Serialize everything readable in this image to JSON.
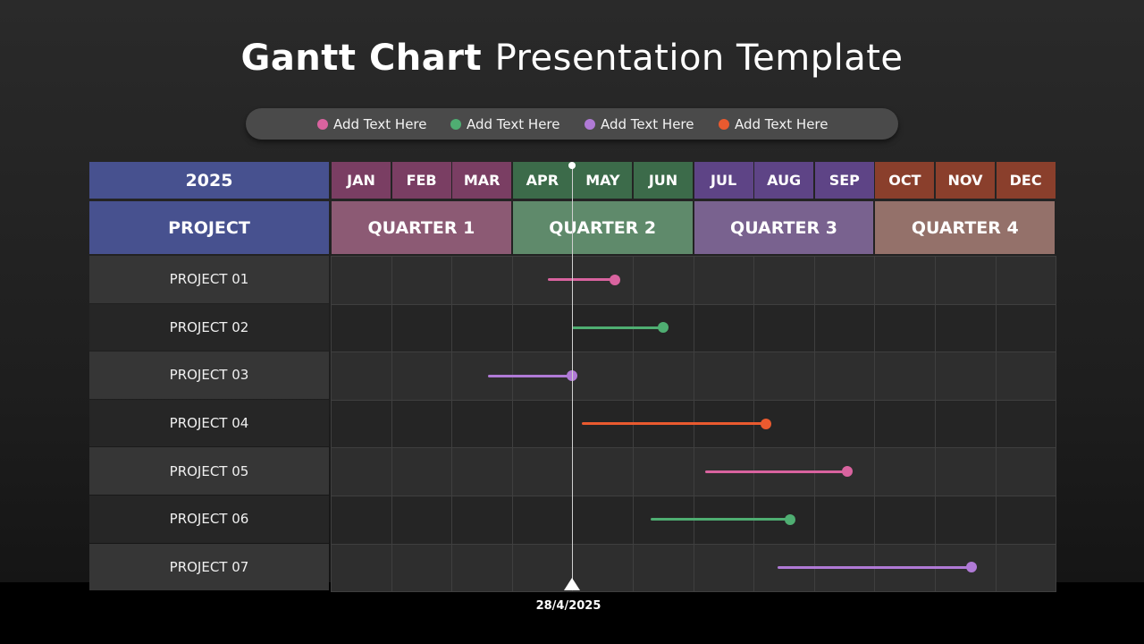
{
  "title": {
    "bold": "Gantt Chart",
    "light": "Presentation Template"
  },
  "legend": [
    {
      "label": "Add Text Here",
      "color": "#d9639f"
    },
    {
      "label": "Add Text Here",
      "color": "#4fae72"
    },
    {
      "label": "Add Text Here",
      "color": "#b07ad6"
    },
    {
      "label": "Add Text Here",
      "color": "#ea5a2f"
    }
  ],
  "table": {
    "year": "2025",
    "project_header": "PROJECT",
    "months": [
      "JAN",
      "FEB",
      "MAR",
      "APR",
      "MAY",
      "JUN",
      "JUL",
      "AUG",
      "SEP",
      "OCT",
      "NOV",
      "DEC"
    ],
    "month_colors": [
      "#7a3e63",
      "#7a3e63",
      "#7a3e63",
      "#3c6b4a",
      "#3c6b4a",
      "#3c6b4a",
      "#5e4486",
      "#5e4486",
      "#5e4486",
      "#8a3f2c",
      "#8a3f2c",
      "#8a3f2c"
    ],
    "quarters": [
      {
        "label": "QUARTER 1",
        "color": "#8c5a74"
      },
      {
        "label": "QUARTER 2",
        "color": "#5f8a6b"
      },
      {
        "label": "QUARTER 3",
        "color": "#79628f"
      },
      {
        "label": "QUARTER 4",
        "color": "#94716a"
      }
    ]
  },
  "projects": [
    {
      "name": "PROJECT 01",
      "start": 3.6,
      "end": 4.7,
      "color": "#d9639f"
    },
    {
      "name": "PROJECT 02",
      "start": 4.0,
      "end": 5.5,
      "color": "#4fae72"
    },
    {
      "name": "PROJECT 03",
      "start": 2.6,
      "end": 4.0,
      "color": "#b07ad6"
    },
    {
      "name": "PROJECT 04",
      "start": 4.15,
      "end": 7.2,
      "color": "#ea5a2f"
    },
    {
      "name": "PROJECT 05",
      "start": 6.2,
      "end": 8.55,
      "color": "#d9639f"
    },
    {
      "name": "PROJECT 06",
      "start": 5.3,
      "end": 7.6,
      "color": "#4fae72"
    },
    {
      "name": "PROJECT 07",
      "start": 7.4,
      "end": 10.6,
      "color": "#b07ad6"
    }
  ],
  "today": {
    "label": "28/4/2025",
    "month_position": 4.0
  }
}
